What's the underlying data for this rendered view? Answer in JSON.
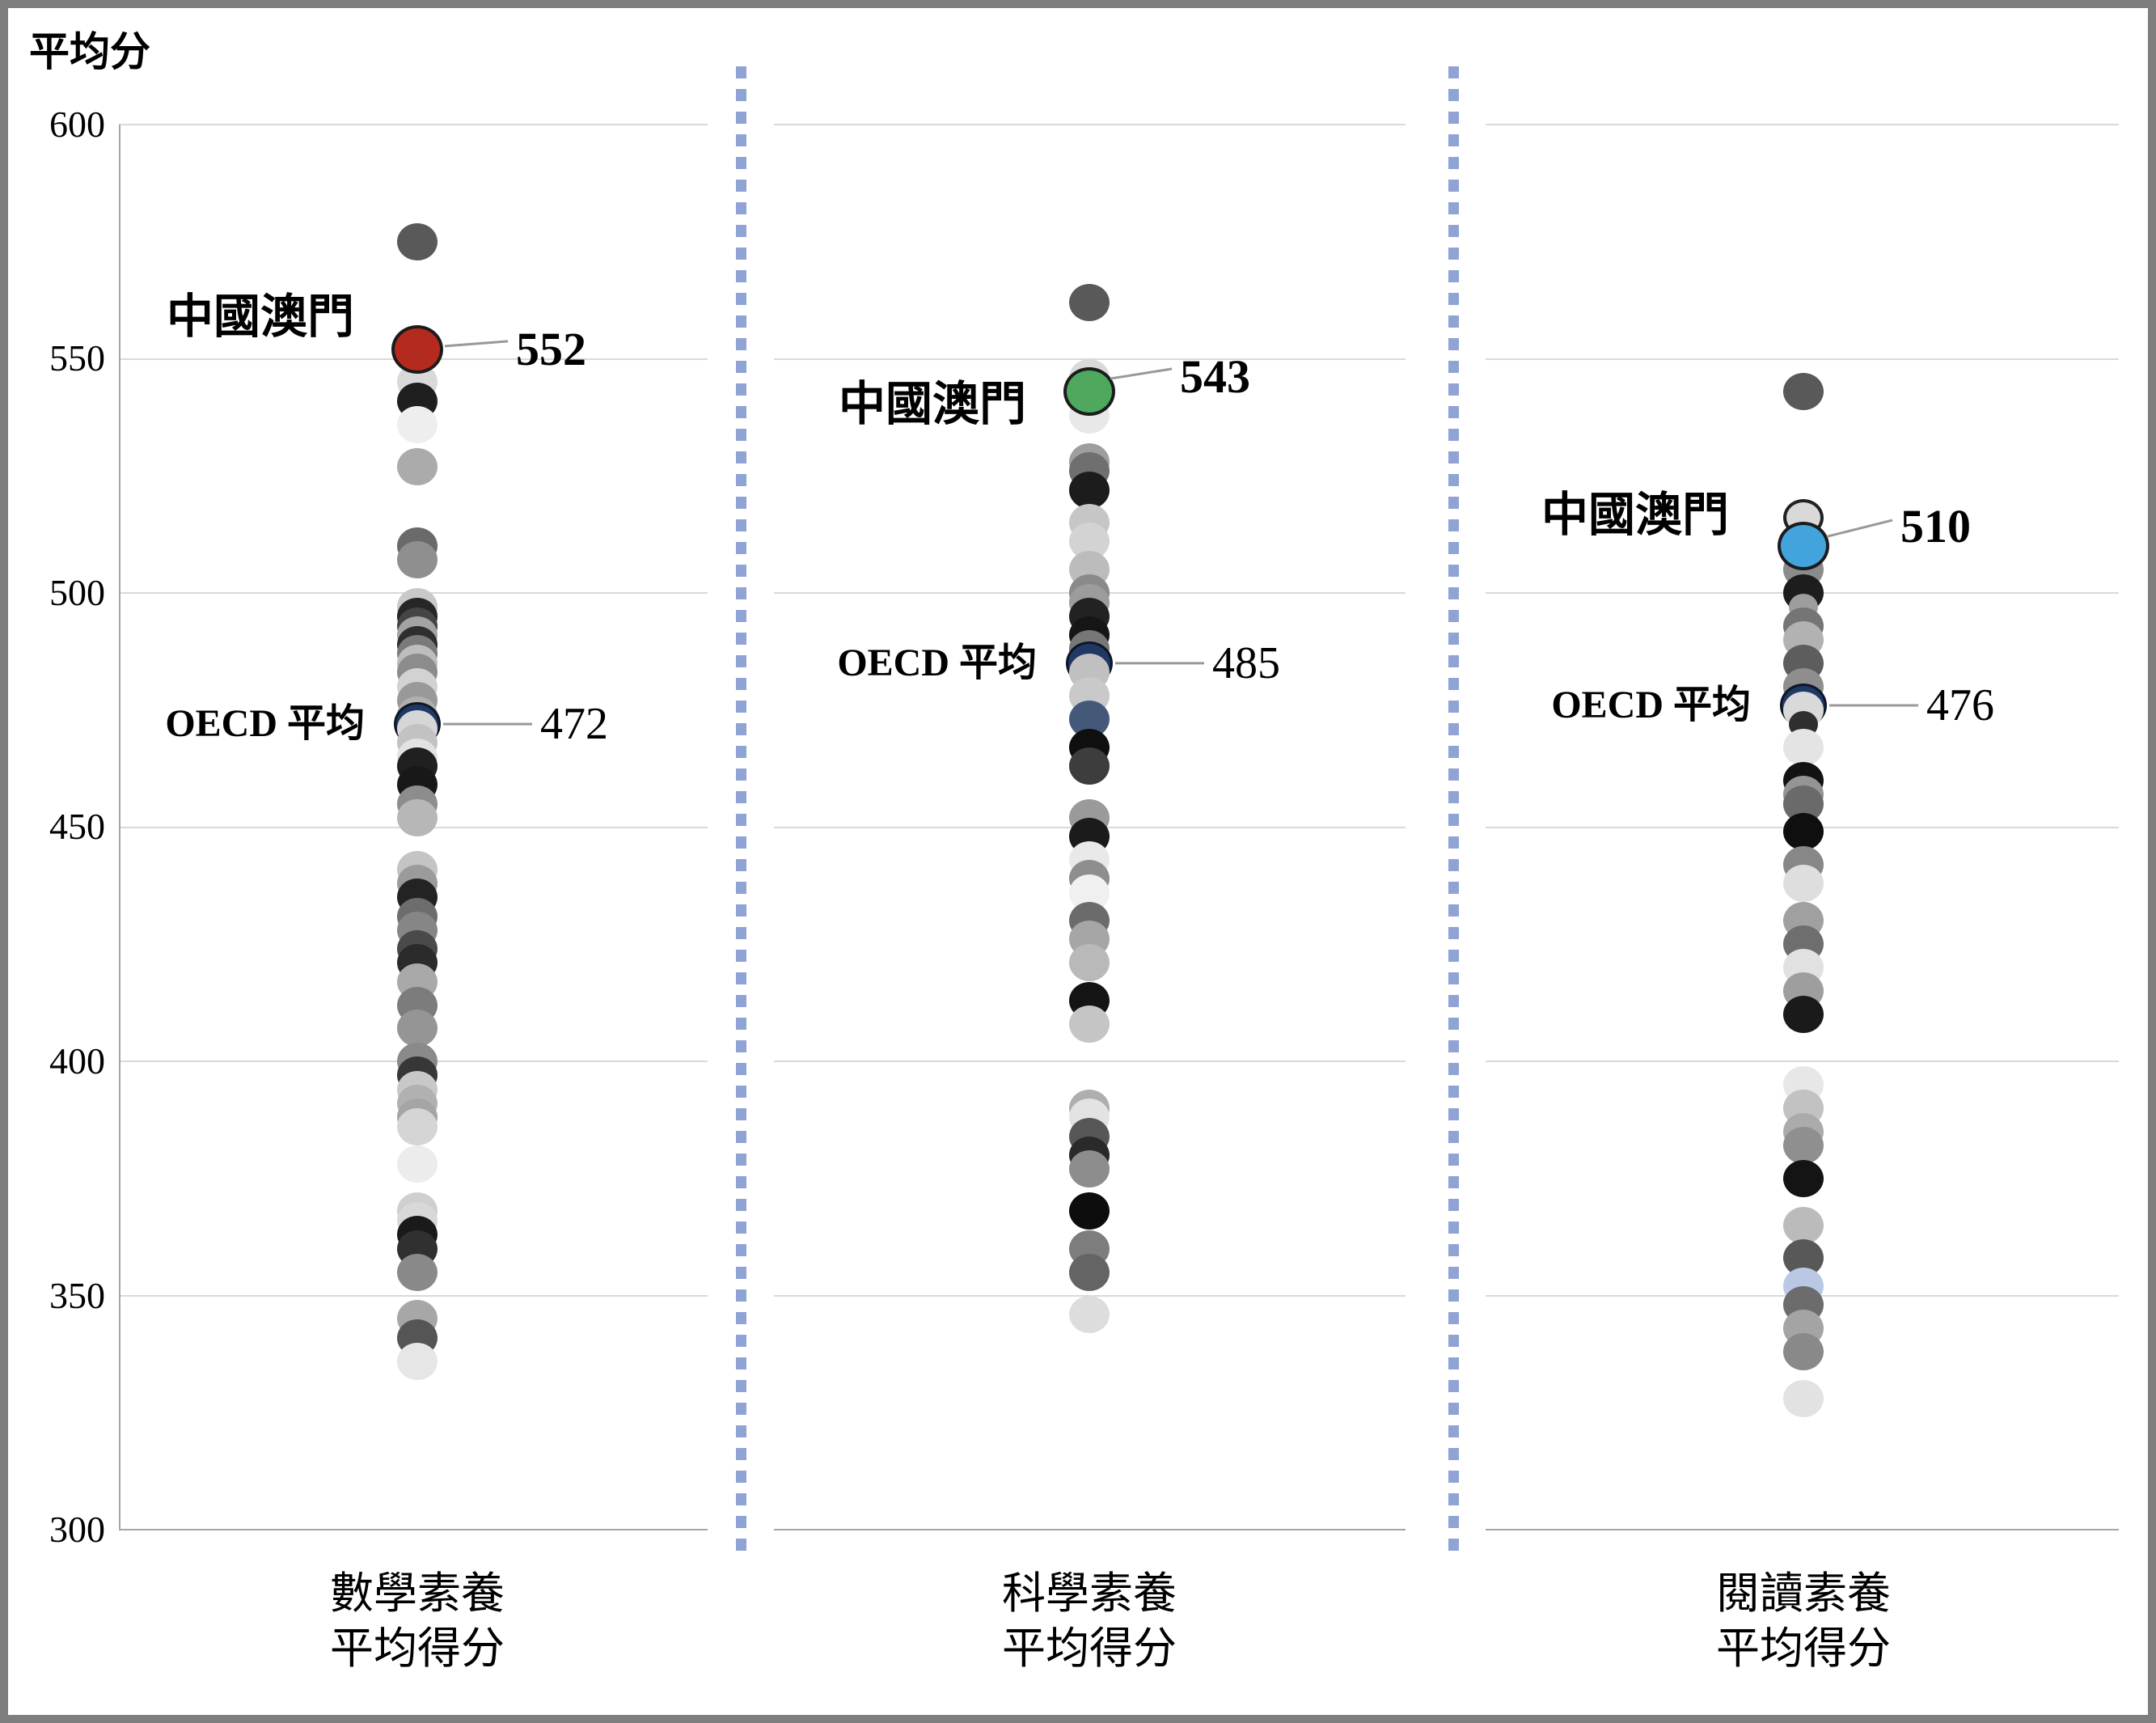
{
  "chart_data": {
    "type": "scatter",
    "title": "",
    "ylabel": "平均分",
    "xlabel": "",
    "ylim": [
      300,
      600
    ],
    "yticks": [
      600,
      550,
      500,
      450,
      400,
      350,
      300
    ],
    "grid": "horizontal",
    "legend_position": "none",
    "colors": {
      "macau_math": "#b52a1e",
      "macau_science": "#4ea85e",
      "macau_reading": "#43a3dd",
      "oecd_navy": "#1f3864",
      "separator": "#8fa3d4",
      "gridline": "#d9d9d9",
      "leader_line": "#999999"
    },
    "panels": [
      {
        "id": "math",
        "category_lines": [
          "數學素養",
          "平均得分"
        ],
        "macau": {
          "label": "中國澳門",
          "value": 552,
          "color": "#b52a1e"
        },
        "oecd": {
          "label": "OECD 平均",
          "value": 472,
          "color": "#1f3864"
        },
        "dots": [
          {
            "v": 575,
            "c": "#595959"
          },
          {
            "v": 545,
            "c": "#d9d9d9"
          },
          {
            "v": 541,
            "c": "#1f1f1f"
          },
          {
            "v": 536,
            "c": "#eeeeee"
          },
          {
            "v": 527,
            "c": "#ababab"
          },
          {
            "v": 510,
            "c": "#6a6a6a"
          },
          {
            "v": 507,
            "c": "#8f8f8f"
          },
          {
            "v": 497,
            "c": "#c9c9c9"
          },
          {
            "v": 495,
            "c": "#262626"
          },
          {
            "v": 493,
            "c": "#454545"
          },
          {
            "v": 491,
            "c": "#a3a3a3"
          },
          {
            "v": 489,
            "c": "#2e2e2e"
          },
          {
            "v": 487,
            "c": "#7a7a7a"
          },
          {
            "v": 485,
            "c": "#bdbdbd"
          },
          {
            "v": 483,
            "c": "#8c8c8c"
          },
          {
            "v": 480,
            "c": "#d2d2d2"
          },
          {
            "v": 477,
            "c": "#999999"
          },
          {
            "v": 474,
            "c": "#b0b0b0"
          },
          {
            "v": 472,
            "role": "oecd"
          },
          {
            "v": 471,
            "c": "#d6d6d6"
          },
          {
            "v": 468,
            "c": "#c2c2c2"
          },
          {
            "v": 465,
            "c": "#e2e2e2"
          },
          {
            "v": 463,
            "c": "#202020"
          },
          {
            "v": 459,
            "c": "#181818"
          },
          {
            "v": 455,
            "c": "#8d8d8d"
          },
          {
            "v": 452,
            "c": "#b7b7b7"
          },
          {
            "v": 441,
            "c": "#c4c4c4"
          },
          {
            "v": 438,
            "c": "#9b9b9b"
          },
          {
            "v": 435,
            "c": "#232323"
          },
          {
            "v": 431,
            "c": "#6d6d6d"
          },
          {
            "v": 428,
            "c": "#868686"
          },
          {
            "v": 424,
            "c": "#4a4a4a"
          },
          {
            "v": 421,
            "c": "#2b2b2b"
          },
          {
            "v": 417,
            "c": "#a9a9a9"
          },
          {
            "v": 412,
            "c": "#7c7c7c"
          },
          {
            "v": 407,
            "c": "#959595"
          },
          {
            "v": 400,
            "c": "#8a8a8a"
          },
          {
            "v": 397,
            "c": "#373737"
          },
          {
            "v": 394,
            "c": "#c8c8c8"
          },
          {
            "v": 391,
            "c": "#b1b1b1"
          },
          {
            "v": 388,
            "c": "#a5a5a5"
          },
          {
            "v": 386,
            "c": "#d5d5d5"
          },
          {
            "v": 378,
            "c": "#ececec"
          },
          {
            "v": 368,
            "c": "#cfcfcf"
          },
          {
            "v": 366,
            "c": "#d8d8d8"
          },
          {
            "v": 363,
            "c": "#1a1a1a"
          },
          {
            "v": 360,
            "c": "#303030"
          },
          {
            "v": 355,
            "c": "#898989"
          },
          {
            "v": 345,
            "c": "#a7a7a7"
          },
          {
            "v": 341,
            "c": "#555555"
          },
          {
            "v": 336,
            "c": "#e6e6e6"
          }
        ]
      },
      {
        "id": "science",
        "category_lines": [
          "科學素養",
          "平均得分"
        ],
        "macau": {
          "label": "中國澳門",
          "value": 543,
          "color": "#4ea85e"
        },
        "oecd": {
          "label": "OECD 平均",
          "value": 485,
          "color": "#1f3864"
        },
        "dots": [
          {
            "v": 562,
            "c": "#595959"
          },
          {
            "v": 546,
            "c": "#d9d9d9"
          },
          {
            "v": 538,
            "c": "#e8e8e8"
          },
          {
            "v": 528,
            "c": "#9e9e9e"
          },
          {
            "v": 526,
            "c": "#6f6f6f"
          },
          {
            "v": 522,
            "c": "#1c1c1c"
          },
          {
            "v": 515,
            "c": "#c6c6c6"
          },
          {
            "v": 511,
            "c": "#d3d3d3"
          },
          {
            "v": 505,
            "c": "#bcbcbc"
          },
          {
            "v": 500,
            "c": "#8a8a8a"
          },
          {
            "v": 498,
            "c": "#9c9c9c"
          },
          {
            "v": 495,
            "c": "#222222"
          },
          {
            "v": 491,
            "c": "#161616"
          },
          {
            "v": 488,
            "c": "#777777"
          },
          {
            "v": 485,
            "role": "oecd"
          },
          {
            "v": 483,
            "c": "#c0c0c0"
          },
          {
            "v": 478,
            "c": "#c9c9c9"
          },
          {
            "v": 473,
            "c": "#44597a"
          },
          {
            "v": 467,
            "c": "#0f0f0f"
          },
          {
            "v": 463,
            "c": "#3d3d3d"
          },
          {
            "v": 452,
            "c": "#9a9a9a"
          },
          {
            "v": 448,
            "c": "#1b1b1b"
          },
          {
            "v": 443,
            "c": "#e9e9e9"
          },
          {
            "v": 439,
            "c": "#8e8e8e"
          },
          {
            "v": 436,
            "c": "#f0f0f0"
          },
          {
            "v": 430,
            "c": "#6b6b6b"
          },
          {
            "v": 426,
            "c": "#a6a6a6"
          },
          {
            "v": 421,
            "c": "#b9b9b9"
          },
          {
            "v": 413,
            "c": "#141414"
          },
          {
            "v": 408,
            "c": "#c5c5c5"
          },
          {
            "v": 390,
            "c": "#aeaeae"
          },
          {
            "v": 388,
            "c": "#e3e3e3"
          },
          {
            "v": 384,
            "c": "#575757"
          },
          {
            "v": 380,
            "c": "#2a2a2a"
          },
          {
            "v": 377,
            "c": "#8d8d8d"
          },
          {
            "v": 368,
            "c": "#0d0d0d"
          },
          {
            "v": 360,
            "c": "#7d7d7d"
          },
          {
            "v": 355,
            "c": "#646464"
          },
          {
            "v": 346,
            "c": "#dddddd"
          }
        ]
      },
      {
        "id": "reading",
        "category_lines": [
          "閱讀素養",
          "平均得分"
        ],
        "macau": {
          "label": "中國澳門",
          "value": 510,
          "color": "#43a3dd"
        },
        "oecd": {
          "label": "OECD 平均",
          "value": 476,
          "color": "#1f3864"
        },
        "dots": [
          {
            "v": 543,
            "c": "#595959"
          },
          {
            "v": 516,
            "c": "#d9d9d9",
            "outlined": true
          },
          {
            "v": 505,
            "c": "#8b8b8b"
          },
          {
            "v": 500,
            "c": "#1d1d1d"
          },
          {
            "v": 497,
            "c": "#9d9d9d",
            "s": "small"
          },
          {
            "v": 493,
            "c": "#757575"
          },
          {
            "v": 490,
            "c": "#b2b2b2"
          },
          {
            "v": 485,
            "c": "#5d5d5d"
          },
          {
            "v": 480,
            "c": "#8e8e8e"
          },
          {
            "v": 476,
            "role": "oecd"
          },
          {
            "v": 475,
            "c": "#d9d9d9"
          },
          {
            "v": 472,
            "c": "#2f2f2f",
            "s": "small"
          },
          {
            "v": 467,
            "c": "#e4e4e4"
          },
          {
            "v": 460,
            "c": "#121212"
          },
          {
            "v": 457,
            "c": "#949494"
          },
          {
            "v": 455,
            "c": "#6a6a6a"
          },
          {
            "v": 449,
            "c": "#0f0f0f"
          },
          {
            "v": 442,
            "c": "#878787"
          },
          {
            "v": 438,
            "c": "#dedede"
          },
          {
            "v": 430,
            "c": "#a0a0a0"
          },
          {
            "v": 425,
            "c": "#6e6e6e"
          },
          {
            "v": 420,
            "c": "#e1e1e1"
          },
          {
            "v": 415,
            "c": "#9e9e9e"
          },
          {
            "v": 410,
            "c": "#1a1a1a"
          },
          {
            "v": 395,
            "c": "#e7e7e7"
          },
          {
            "v": 390,
            "c": "#c2c2c2"
          },
          {
            "v": 385,
            "c": "#ababab"
          },
          {
            "v": 382,
            "c": "#8f8f8f"
          },
          {
            "v": 375,
            "c": "#141414"
          },
          {
            "v": 365,
            "c": "#bbbbbb"
          },
          {
            "v": 358,
            "c": "#585858"
          },
          {
            "v": 352,
            "c": "#b9c9e4"
          },
          {
            "v": 348,
            "c": "#6c6c6c"
          },
          {
            "v": 343,
            "c": "#a4a4a4"
          },
          {
            "v": 338,
            "c": "#898989"
          },
          {
            "v": 328,
            "c": "#e2e2e2"
          }
        ]
      }
    ]
  }
}
